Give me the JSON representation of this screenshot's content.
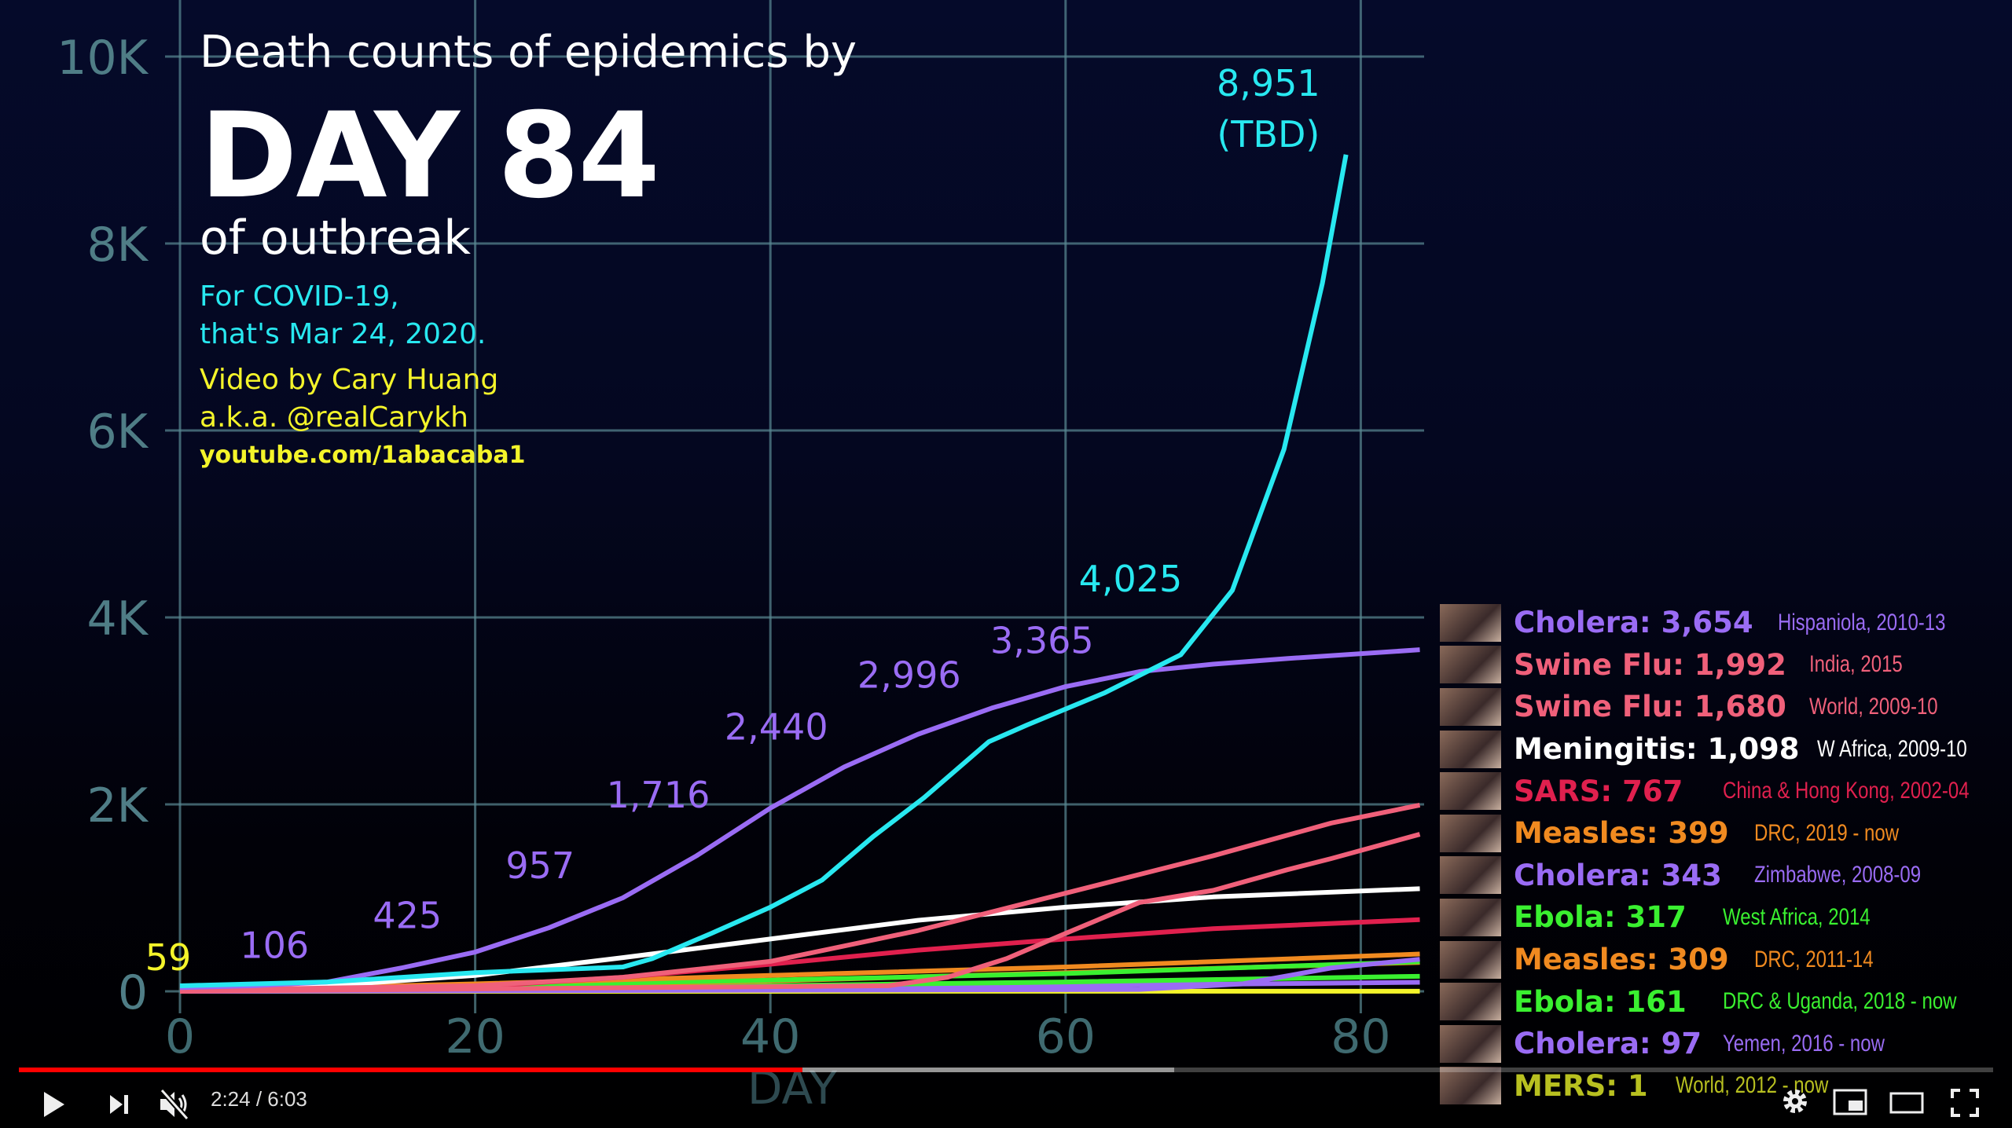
{
  "header": {
    "line1": "Death counts of epidemics by",
    "line2": "DAY 84",
    "line3": "of outbreak",
    "covid_note": [
      "For COVID-19,",
      "that's Mar 24, 2020."
    ],
    "credit": [
      "Video by Cary Huang",
      "a.k.a. @realCarykh"
    ],
    "channel": "youtube.com/1abacaba1"
  },
  "chart_data": {
    "type": "line",
    "xlabel": "DAY",
    "ylabel": "",
    "xlim": [
      0,
      84
    ],
    "ylim": [
      0,
      10000
    ],
    "x_ticks": [
      "0",
      "20",
      "40",
      "60",
      "80"
    ],
    "x_tick_values": [
      0,
      20,
      40,
      60,
      80
    ],
    "y_ticks": [
      "0",
      "2K",
      "4K",
      "6K",
      "8K",
      "10K"
    ],
    "y_tick_values": [
      0,
      2000,
      4000,
      6000,
      8000,
      10000
    ],
    "grid": true,
    "background": "#050a2a",
    "series": [
      {
        "color": "#28e8f0",
        "points": [
          [
            0,
            59
          ],
          [
            10,
            100
          ],
          [
            20,
            200
          ],
          [
            25,
            230
          ],
          [
            30,
            260
          ],
          [
            32,
            350
          ],
          [
            36,
            620
          ],
          [
            40,
            900
          ],
          [
            43.5,
            1190
          ],
          [
            47,
            1660
          ],
          [
            50.4,
            2070
          ],
          [
            54.8,
            2670
          ],
          [
            57.4,
            2850
          ],
          [
            62.6,
            3190
          ],
          [
            67.8,
            3600
          ],
          [
            71.3,
            4290
          ],
          [
            74.8,
            5800
          ],
          [
            77.4,
            7575
          ],
          [
            79,
            8951
          ]
        ]
      },
      {
        "color": "#9a6cf4",
        "points": [
          [
            0,
            40
          ],
          [
            5,
            60
          ],
          [
            10,
            100
          ],
          [
            15,
            250
          ],
          [
            20,
            420
          ],
          [
            25,
            680
          ],
          [
            30,
            1000
          ],
          [
            35,
            1450
          ],
          [
            40,
            1960
          ],
          [
            45,
            2400
          ],
          [
            50,
            2750
          ],
          [
            55,
            3030
          ],
          [
            60,
            3260
          ],
          [
            65,
            3420
          ],
          [
            70,
            3500
          ],
          [
            75,
            3560
          ],
          [
            84,
            3654
          ]
        ]
      },
      {
        "color": "#f0607a",
        "points": [
          [
            0,
            10
          ],
          [
            20,
            60
          ],
          [
            30,
            150
          ],
          [
            40,
            320
          ],
          [
            50,
            650
          ],
          [
            60,
            1050
          ],
          [
            70,
            1450
          ],
          [
            78,
            1800
          ],
          [
            84,
            1992
          ]
        ]
      },
      {
        "color": "#f0607a",
        "points": [
          [
            0,
            0
          ],
          [
            48,
            60
          ],
          [
            52,
            150
          ],
          [
            56,
            350
          ],
          [
            60,
            620
          ],
          [
            65,
            950
          ],
          [
            70,
            1080
          ],
          [
            75,
            1300
          ],
          [
            78,
            1420
          ],
          [
            84,
            1680
          ]
        ]
      },
      {
        "color": "#ffffff",
        "points": [
          [
            0,
            20
          ],
          [
            10,
            60
          ],
          [
            20,
            170
          ],
          [
            30,
            360
          ],
          [
            40,
            560
          ],
          [
            50,
            760
          ],
          [
            60,
            900
          ],
          [
            70,
            1010
          ],
          [
            84,
            1098
          ]
        ]
      },
      {
        "color": "#e0204e",
        "points": [
          [
            0,
            5
          ],
          [
            20,
            50
          ],
          [
            30,
            150
          ],
          [
            40,
            290
          ],
          [
            50,
            440
          ],
          [
            60,
            560
          ],
          [
            70,
            670
          ],
          [
            84,
            767
          ]
        ]
      },
      {
        "color": "#f08a20",
        "points": [
          [
            0,
            5
          ],
          [
            20,
            80
          ],
          [
            40,
            170
          ],
          [
            60,
            260
          ],
          [
            84,
            399
          ]
        ]
      },
      {
        "color": "#9a6cf4",
        "points": [
          [
            0,
            0
          ],
          [
            65,
            20
          ],
          [
            72,
            80
          ],
          [
            78,
            250
          ],
          [
            84,
            343
          ]
        ]
      },
      {
        "color": "#3af030",
        "points": [
          [
            0,
            10
          ],
          [
            20,
            60
          ],
          [
            40,
            120
          ],
          [
            60,
            190
          ],
          [
            84,
            317
          ]
        ]
      },
      {
        "color": "#f08a20",
        "points": [
          [
            0,
            5
          ],
          [
            20,
            50
          ],
          [
            40,
            110
          ],
          [
            60,
            200
          ],
          [
            84,
            309
          ]
        ]
      },
      {
        "color": "#3af030",
        "points": [
          [
            0,
            5
          ],
          [
            40,
            60
          ],
          [
            60,
            100
          ],
          [
            84,
            161
          ]
        ]
      },
      {
        "color": "#9a6cf4",
        "points": [
          [
            0,
            0
          ],
          [
            40,
            30
          ],
          [
            84,
            97
          ]
        ]
      },
      {
        "color": "#f4f42a",
        "points": [
          [
            0,
            0
          ],
          [
            84,
            1
          ]
        ]
      }
    ],
    "annotations": [
      {
        "text": "59",
        "x": 0,
        "y": 59,
        "color": "#f4f42a"
      },
      {
        "text": "106",
        "x": 8,
        "y": 106,
        "color": "#9a6cf4"
      },
      {
        "text": "425",
        "x": 17,
        "y": 425,
        "color": "#9a6cf4"
      },
      {
        "text": "957",
        "x": 26,
        "y": 957,
        "color": "#9a6cf4"
      },
      {
        "text": "1,716",
        "x": 34,
        "y": 1716,
        "color": "#9a6cf4"
      },
      {
        "text": "2,440",
        "x": 42,
        "y": 2440,
        "color": "#9a6cf4"
      },
      {
        "text": "2,996",
        "x": 51,
        "y": 2996,
        "color": "#9a6cf4"
      },
      {
        "text": "3,365",
        "x": 60,
        "y": 3365,
        "color": "#9a6cf4"
      },
      {
        "text": "4,025",
        "x": 66,
        "y": 4025,
        "color": "#28e8f0"
      },
      {
        "text": "8,951",
        "x": 78,
        "y": 8951,
        "color": "#28e8f0"
      },
      {
        "text": "(TBD)",
        "x": 78,
        "y": 8951,
        "color": "#28e8f0"
      }
    ]
  },
  "legend": [
    {
      "label": "Cholera: 3,654",
      "where": "Hispaniola, 2010-13",
      "color": "#9a6cf4"
    },
    {
      "label": "Swine Flu: 1,992",
      "where": "India, 2015",
      "color": "#f0607a"
    },
    {
      "label": "Swine Flu: 1,680",
      "where": "World, 2009-10",
      "color": "#f0607a"
    },
    {
      "label": "Meningitis: 1,098",
      "where": "W Africa, 2009-10",
      "color": "#ffffff"
    },
    {
      "label": "SARS: 767",
      "where": "China & Hong Kong, 2002-04",
      "color": "#e0204e"
    },
    {
      "label": "Measles: 399",
      "where": "DRC, 2019 - now",
      "color": "#f08a20"
    },
    {
      "label": "Cholera: 343",
      "where": "Zimbabwe, 2008-09",
      "color": "#9a6cf4"
    },
    {
      "label": "Ebola: 317",
      "where": "West Africa, 2014",
      "color": "#3af030"
    },
    {
      "label": "Measles: 309",
      "where": "DRC, 2011-14",
      "color": "#f08a20"
    },
    {
      "label": "Ebola: 161",
      "where": "DRC & Uganda, 2018 - now",
      "color": "#3af030"
    },
    {
      "label": "Cholera: 97",
      "where": "Yemen, 2016 - now",
      "color": "#9a6cf4"
    },
    {
      "label": "MERS: 1",
      "where": "World, 2012 - now",
      "color": "#b8c020"
    }
  ],
  "player": {
    "time": "2:24 / 6:03",
    "played_fraction": 0.397,
    "buffered_fraction": 0.585,
    "accent": "#ff0000",
    "icons": [
      "play-icon",
      "next-icon",
      "muted-icon",
      "settings-icon",
      "miniplayer-icon",
      "theater-icon",
      "fullscreen-icon"
    ]
  }
}
